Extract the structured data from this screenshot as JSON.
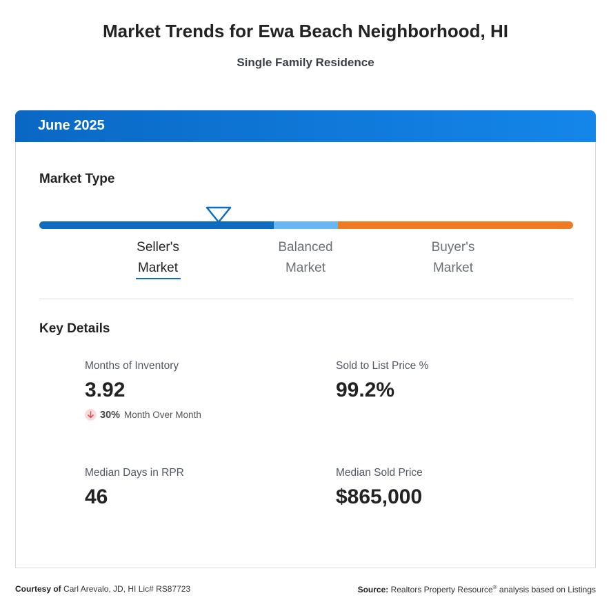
{
  "header": {
    "title": "Market Trends for Ewa Beach Neighborhood, HI",
    "subtitle": "Single Family Residence"
  },
  "card": {
    "period": "June 2025",
    "market_type": {
      "title": "Market Type",
      "options": [
        {
          "line1": "Seller's",
          "line2": "Market"
        },
        {
          "line1": "Balanced",
          "line2": "Market"
        },
        {
          "line1": "Buyer's",
          "line2": "Market"
        }
      ],
      "selected": "Seller's Market",
      "colors": {
        "seller": "#0d6cc0",
        "balanced": "#67b6f5",
        "buyer": "#ee7a22"
      }
    },
    "key_details": {
      "title": "Key Details",
      "metrics": [
        {
          "label": "Months of Inventory",
          "value": "3.92",
          "change": {
            "direction": "down",
            "percent": "30%",
            "label": "Month Over Month"
          }
        },
        {
          "label": "Sold to List Price %",
          "value": "99.2%"
        },
        {
          "label": "Median Days in RPR",
          "value": "46"
        },
        {
          "label": "Median Sold Price",
          "value": "$865,000"
        }
      ]
    }
  },
  "footer": {
    "courtesy_prefix": "Courtesy of",
    "courtesy_text": "Carl Arevalo, JD, HI Lic# RS87723",
    "source_prefix": "Source:",
    "source_text": "Realtors Property Resource",
    "source_mark": "®",
    "source_suffix": "analysis based on Listings"
  },
  "colors": {
    "accent": "#0a68c4",
    "decline_icon": "#d9534f"
  }
}
